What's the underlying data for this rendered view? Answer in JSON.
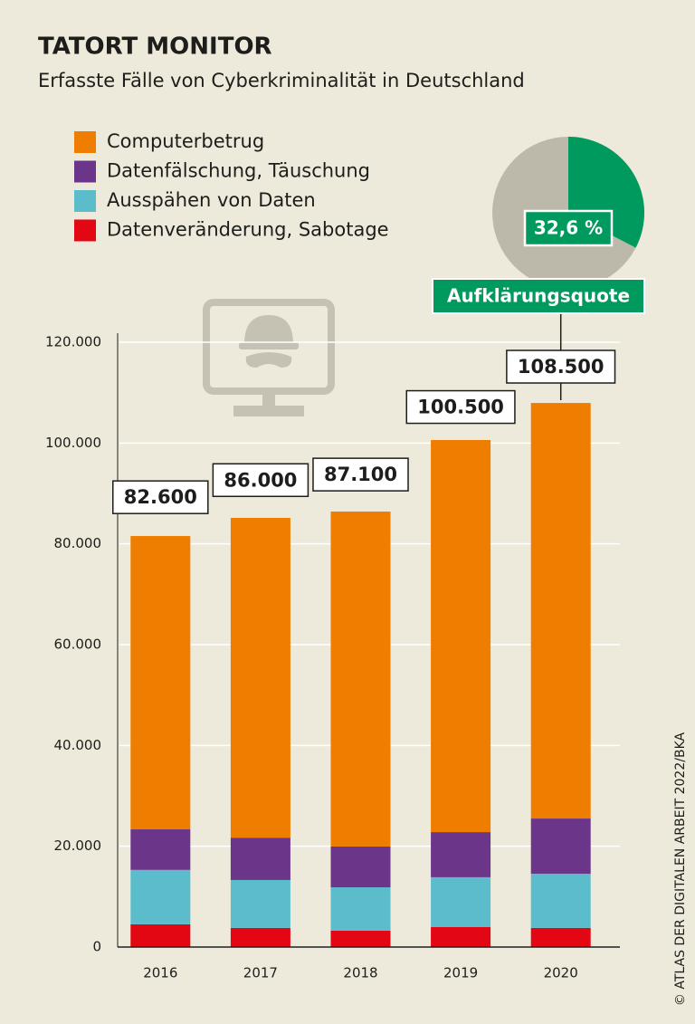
{
  "chart_data": [
    {
      "type": "bar",
      "title": "TATORT MONITOR",
      "subtitle": "Erfasste Fälle von Cyberkriminalität in Deutschland",
      "source": "© ATLAS DER DIGITALEN ARBEIT 2022/BKA",
      "categories": [
        "2016",
        "2017",
        "2018",
        "2019",
        "2020"
      ],
      "stacked": true,
      "series": [
        {
          "name": "Datenveränderung, Sabotage",
          "color": "#e30613",
          "values": [
            4500,
            3800,
            3250,
            3950,
            3800
          ]
        },
        {
          "name": "Ausspähen von Daten",
          "color": "#5bbccb",
          "values": [
            10800,
            9500,
            8600,
            9900,
            10750
          ]
        },
        {
          "name": "Datenfälschung, Täuschung",
          "color": "#6b3589",
          "values": [
            8050,
            8400,
            8100,
            8950,
            10950
          ]
        },
        {
          "name": "Computerbetrug",
          "color": "#ef7d00",
          "values": [
            58200,
            63450,
            66450,
            77800,
            82450
          ]
        }
      ],
      "totals": {
        "values": [
          82600,
          86000,
          87100,
          100500,
          108500
        ],
        "value_labels": [
          "82.600",
          "86.000",
          "87.100",
          "100.500",
          "108.500"
        ]
      },
      "ylim": [
        0,
        120000
      ],
      "yticks": [
        0,
        {
          "value": 20000,
          "label": "20.000"
        },
        {
          "value": 40000,
          "label": "40.000"
        },
        {
          "value": 60000,
          "label": "60.000"
        },
        {
          "value": 80000,
          "label": "80.000"
        },
        {
          "value": 100000,
          "label": "100.000"
        },
        {
          "value": 120000,
          "label": "120.000"
        }
      ],
      "grid": true
    },
    {
      "type": "pie",
      "title": "Aufklärungsquote",
      "values": [
        32.6
      ],
      "value_labels": [
        "32,6 %"
      ],
      "color": "#009a5e"
    }
  ]
}
